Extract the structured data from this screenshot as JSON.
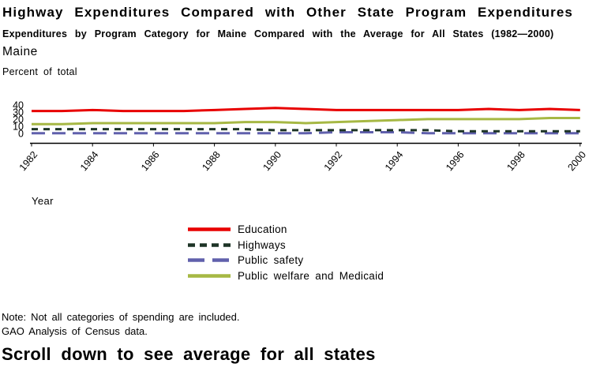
{
  "header": {
    "title": "Highway Expenditures Compared with Other State Program Expenditures",
    "subtitle": "Expenditures by Program Category for Maine Compared with the Average for All States (1982—2000)"
  },
  "chart_data": {
    "type": "line",
    "title": "Maine",
    "xlabel": "Year",
    "ylabel": "Percent of total",
    "ylim": [
      0,
      40
    ],
    "yticks": [
      0,
      10,
      20,
      30,
      40
    ],
    "xticks": [
      1982,
      1984,
      1986,
      1988,
      1990,
      1992,
      1994,
      1996,
      1998,
      2000
    ],
    "grid": false,
    "legend_position": "below-left",
    "x": [
      1982,
      1983,
      1984,
      1985,
      1986,
      1987,
      1988,
      1989,
      1990,
      1991,
      1992,
      1993,
      1994,
      1995,
      1996,
      1997,
      1998,
      1999,
      2000
    ],
    "series": [
      {
        "name": "Education",
        "color": "#e80000",
        "dash": "none",
        "values": [
          30,
          30,
          31,
          30,
          30,
          30,
          31,
          32,
          33,
          32,
          31,
          31,
          31,
          31,
          31,
          32,
          31,
          32,
          31
        ]
      },
      {
        "name": "Highways",
        "color": "#1d3426",
        "dash": "short",
        "values": [
          12,
          12,
          12,
          12,
          12,
          12,
          12,
          12,
          11,
          11,
          11,
          11,
          11,
          11,
          10,
          10,
          10,
          10,
          10
        ]
      },
      {
        "name": "Public safety",
        "color": "#6060ac",
        "dash": "long",
        "values": [
          8,
          8,
          8,
          8,
          8,
          8,
          8,
          8,
          8,
          8,
          9,
          9,
          9,
          8,
          8,
          8,
          8,
          8,
          8
        ]
      },
      {
        "name": "Public welfare and Medicaid",
        "color": "#a6b844",
        "dash": "none",
        "values": [
          17,
          17,
          18,
          18,
          18,
          18,
          18,
          19,
          19,
          18,
          19,
          20,
          21,
          22,
          22,
          22,
          22,
          23,
          23
        ]
      }
    ]
  },
  "footer": {
    "note_line1": "Note:  Not all categories of spending are included.",
    "note_line2": "GAO Analysis of Census data.",
    "scroll_message": "Scroll down to see average for all states"
  }
}
